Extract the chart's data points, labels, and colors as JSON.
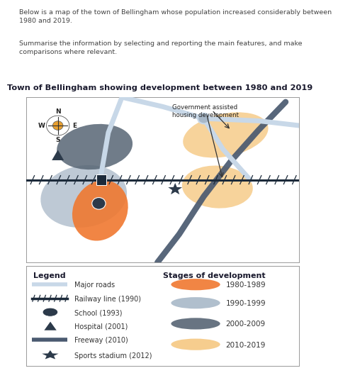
{
  "title": "Town of Bellingham showing development between 1980 and 2019",
  "intro_text1": "Below is a map of the town of Bellingham whose population increased considerably between\n1980 and 2019.",
  "intro_text2": "Summarise the information by selecting and reporting the main features, and make\ncomparisons where relevant.",
  "color_orange": "#F07830",
  "color_light_orange": "#F5C882",
  "color_grey_blue": "#576574",
  "color_light_grey": "#A8B8C8",
  "color_dark_navy": "#2C3A4A",
  "color_road": "#C8D8E8",
  "color_freeway": "#4A5A70",
  "color_railway": "#1C2A3A",
  "legend_title1": "Legend",
  "legend_title2": "Stages of development",
  "legend_items_left": [
    "Major roads",
    "Railway line (1990)",
    "School (1993)",
    "Hospital (2001)",
    "Freeway (2010)",
    "Sports stadium (2012)"
  ],
  "legend_items_right": [
    "1980-1989",
    "1990-1999",
    "2000-2009",
    "2010-2019"
  ],
  "legend_colors_right": [
    "#F07830",
    "#A8B8C8",
    "#576574",
    "#F5C882"
  ]
}
